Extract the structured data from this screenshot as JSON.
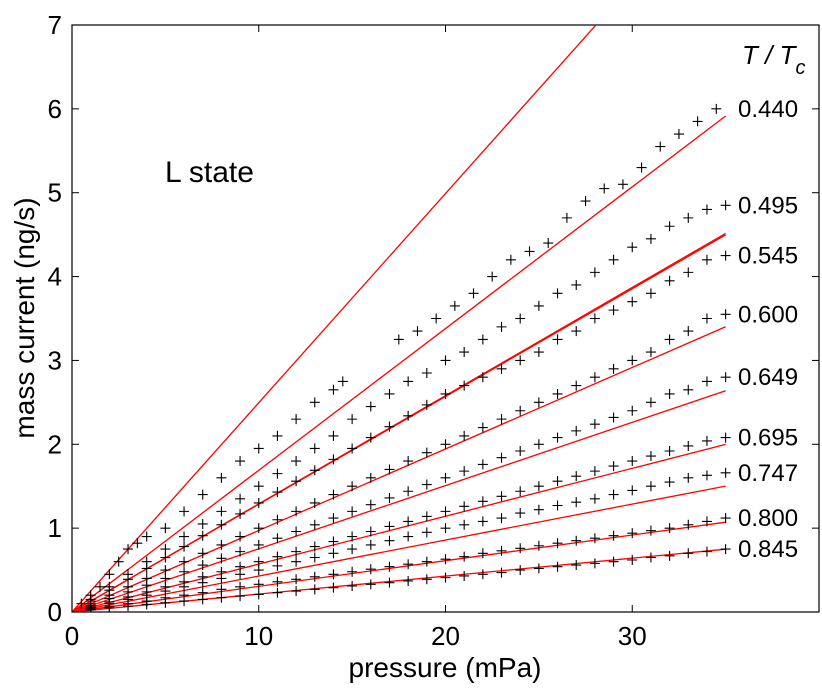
{
  "chart_data": {
    "type": "scatter",
    "xlabel": "pressure (mPa)",
    "ylabel": "mass current (ng/s)",
    "xlim": [
      0,
      40
    ],
    "ylim": [
      0,
      7
    ],
    "xticks": [
      0,
      10,
      20,
      30
    ],
    "yticks": [
      0,
      1,
      2,
      3,
      4,
      5,
      6,
      7
    ],
    "annotation": "L state",
    "legend_title": {
      "main": "T / T",
      "sub": "c"
    },
    "fit_color": "#ff0000",
    "marker_color": "#000000",
    "series": [
      {
        "name": "0.440",
        "fit_slope": 0.169,
        "fit_x_end": 35,
        "points": [
          [
            0.5,
            0.1
          ],
          [
            1,
            0.2
          ],
          [
            1.5,
            0.3
          ],
          [
            2,
            0.45
          ],
          [
            2.5,
            0.6
          ],
          [
            3,
            0.75
          ],
          [
            3.5,
            0.82
          ],
          [
            4,
            0.9
          ],
          [
            5,
            1.0
          ],
          [
            6,
            1.2
          ],
          [
            7,
            1.4
          ],
          [
            8,
            1.6
          ],
          [
            9,
            1.8
          ],
          [
            10,
            1.95
          ],
          [
            11,
            2.1
          ],
          [
            12,
            2.3
          ],
          [
            13,
            2.5
          ],
          [
            14,
            2.65
          ],
          [
            14.5,
            2.75
          ],
          [
            17.5,
            3.25
          ],
          [
            18.5,
            3.35
          ],
          [
            19.5,
            3.5
          ],
          [
            20.5,
            3.65
          ],
          [
            21.5,
            3.8
          ],
          [
            22.5,
            4.0
          ],
          [
            23.5,
            4.2
          ],
          [
            24.5,
            4.3
          ],
          [
            25.5,
            4.4
          ],
          [
            26.5,
            4.7
          ],
          [
            27.5,
            4.9
          ],
          [
            28.5,
            5.05
          ],
          [
            29.5,
            5.1
          ],
          [
            30.5,
            5.3
          ],
          [
            31.5,
            5.55
          ],
          [
            32.5,
            5.7
          ],
          [
            33.5,
            5.85
          ],
          [
            34.5,
            6.0
          ]
        ]
      },
      {
        "name": "0.495",
        "fit_slope": 0.129,
        "fit_x_end": 35,
        "points": [
          [
            1,
            0.15
          ],
          [
            2,
            0.3
          ],
          [
            3,
            0.45
          ],
          [
            4,
            0.6
          ],
          [
            5,
            0.75
          ],
          [
            6,
            0.9
          ],
          [
            7,
            1.05
          ],
          [
            8,
            1.2
          ],
          [
            9,
            1.35
          ],
          [
            10,
            1.5
          ],
          [
            11,
            1.65
          ],
          [
            12,
            1.8
          ],
          [
            13,
            1.95
          ],
          [
            14,
            2.1
          ],
          [
            15,
            2.3
          ],
          [
            16,
            2.45
          ],
          [
            17,
            2.6
          ],
          [
            18,
            2.75
          ],
          [
            19,
            2.85
          ],
          [
            20,
            3.0
          ],
          [
            21,
            3.1
          ],
          [
            22,
            3.25
          ],
          [
            23,
            3.4
          ],
          [
            24,
            3.5
          ],
          [
            25,
            3.65
          ],
          [
            26,
            3.8
          ],
          [
            27,
            3.9
          ],
          [
            28,
            4.05
          ],
          [
            29,
            4.2
          ],
          [
            30,
            4.35
          ],
          [
            31,
            4.45
          ],
          [
            32,
            4.6
          ],
          [
            33,
            4.7
          ],
          [
            34,
            4.8
          ],
          [
            35,
            4.85
          ]
        ]
      },
      {
        "name": "0.545",
        "fit_slope": 0.1285,
        "fit_x_end": 35,
        "points": [
          [
            1,
            0.13
          ],
          [
            2,
            0.26
          ],
          [
            3,
            0.39
          ],
          [
            4,
            0.52
          ],
          [
            5,
            0.65
          ],
          [
            6,
            0.78
          ],
          [
            7,
            0.91
          ],
          [
            8,
            1.04
          ],
          [
            9,
            1.17
          ],
          [
            10,
            1.3
          ],
          [
            11,
            1.43
          ],
          [
            12,
            1.56
          ],
          [
            13,
            1.69
          ],
          [
            14,
            1.82
          ],
          [
            15,
            1.95
          ],
          [
            16,
            2.08
          ],
          [
            17,
            2.21
          ],
          [
            18,
            2.34
          ],
          [
            19,
            2.47
          ],
          [
            20,
            2.6
          ],
          [
            21,
            2.7
          ],
          [
            22,
            2.8
          ],
          [
            23,
            2.9
          ],
          [
            24,
            3.0
          ],
          [
            25,
            3.1
          ],
          [
            26,
            3.25
          ],
          [
            27,
            3.35
          ],
          [
            28,
            3.5
          ],
          [
            29,
            3.6
          ],
          [
            30,
            3.7
          ],
          [
            31,
            3.8
          ],
          [
            32,
            3.95
          ],
          [
            33,
            4.05
          ],
          [
            34,
            4.2
          ],
          [
            35,
            4.25
          ]
        ]
      },
      {
        "name": "0.600",
        "fit_slope": 0.0972,
        "fit_x_end": 35,
        "points": [
          [
            1,
            0.1
          ],
          [
            2,
            0.2
          ],
          [
            3,
            0.3
          ],
          [
            4,
            0.4
          ],
          [
            5,
            0.5
          ],
          [
            6,
            0.6
          ],
          [
            7,
            0.7
          ],
          [
            8,
            0.8
          ],
          [
            9,
            0.9
          ],
          [
            10,
            1.0
          ],
          [
            11,
            1.1
          ],
          [
            12,
            1.2
          ],
          [
            13,
            1.3
          ],
          [
            14,
            1.4
          ],
          [
            15,
            1.5
          ],
          [
            16,
            1.6
          ],
          [
            17,
            1.7
          ],
          [
            18,
            1.8
          ],
          [
            19,
            1.9
          ],
          [
            20,
            2.0
          ],
          [
            21,
            2.1
          ],
          [
            22,
            2.2
          ],
          [
            23,
            2.3
          ],
          [
            24,
            2.4
          ],
          [
            25,
            2.5
          ],
          [
            26,
            2.6
          ],
          [
            27,
            2.7
          ],
          [
            28,
            2.8
          ],
          [
            29,
            2.9
          ],
          [
            30,
            3.0
          ],
          [
            31,
            3.1
          ],
          [
            32,
            3.25
          ],
          [
            33,
            3.35
          ],
          [
            34,
            3.5
          ],
          [
            35,
            3.55
          ]
        ]
      },
      {
        "name": "0.649",
        "fit_slope": 0.0754,
        "fit_x_end": 35,
        "points": [
          [
            1,
            0.08
          ],
          [
            2,
            0.16
          ],
          [
            3,
            0.24
          ],
          [
            4,
            0.32
          ],
          [
            5,
            0.4
          ],
          [
            6,
            0.48
          ],
          [
            7,
            0.56
          ],
          [
            8,
            0.64
          ],
          [
            9,
            0.72
          ],
          [
            10,
            0.8
          ],
          [
            11,
            0.88
          ],
          [
            12,
            0.96
          ],
          [
            13,
            1.04
          ],
          [
            14,
            1.12
          ],
          [
            15,
            1.2
          ],
          [
            16,
            1.28
          ],
          [
            17,
            1.36
          ],
          [
            18,
            1.44
          ],
          [
            19,
            1.52
          ],
          [
            20,
            1.6
          ],
          [
            21,
            1.68
          ],
          [
            22,
            1.76
          ],
          [
            23,
            1.84
          ],
          [
            24,
            1.92
          ],
          [
            25,
            2.0
          ],
          [
            26,
            2.08
          ],
          [
            27,
            2.16
          ],
          [
            28,
            2.24
          ],
          [
            29,
            2.32
          ],
          [
            30,
            2.4
          ],
          [
            31,
            2.5
          ],
          [
            32,
            2.6
          ],
          [
            33,
            2.65
          ],
          [
            34,
            2.75
          ],
          [
            35,
            2.8
          ]
        ]
      },
      {
        "name": "0.695",
        "fit_slope": 0.0571,
        "fit_x_end": 35,
        "points": [
          [
            1,
            0.06
          ],
          [
            2,
            0.12
          ],
          [
            3,
            0.18
          ],
          [
            4,
            0.24
          ],
          [
            5,
            0.3
          ],
          [
            6,
            0.36
          ],
          [
            7,
            0.42
          ],
          [
            8,
            0.48
          ],
          [
            9,
            0.54
          ],
          [
            10,
            0.6
          ],
          [
            11,
            0.66
          ],
          [
            12,
            0.72
          ],
          [
            13,
            0.78
          ],
          [
            14,
            0.84
          ],
          [
            15,
            0.9
          ],
          [
            16,
            0.96
          ],
          [
            17,
            1.02
          ],
          [
            18,
            1.08
          ],
          [
            19,
            1.14
          ],
          [
            20,
            1.2
          ],
          [
            21,
            1.26
          ],
          [
            22,
            1.32
          ],
          [
            23,
            1.38
          ],
          [
            24,
            1.44
          ],
          [
            25,
            1.5
          ],
          [
            26,
            1.56
          ],
          [
            27,
            1.62
          ],
          [
            28,
            1.68
          ],
          [
            29,
            1.74
          ],
          [
            30,
            1.8
          ],
          [
            31,
            1.86
          ],
          [
            32,
            1.92
          ],
          [
            33,
            1.98
          ],
          [
            34,
            2.04
          ],
          [
            35,
            2.08
          ]
        ]
      },
      {
        "name": "0.747",
        "fit_slope": 0.0429,
        "fit_x_end": 35,
        "points": [
          [
            1,
            0.05
          ],
          [
            2,
            0.1
          ],
          [
            3,
            0.15
          ],
          [
            4,
            0.2
          ],
          [
            5,
            0.25
          ],
          [
            6,
            0.3
          ],
          [
            7,
            0.35
          ],
          [
            8,
            0.4
          ],
          [
            9,
            0.45
          ],
          [
            10,
            0.5
          ],
          [
            11,
            0.55
          ],
          [
            12,
            0.6
          ],
          [
            13,
            0.65
          ],
          [
            14,
            0.7
          ],
          [
            15,
            0.75
          ],
          [
            16,
            0.8
          ],
          [
            17,
            0.85
          ],
          [
            18,
            0.9
          ],
          [
            19,
            0.95
          ],
          [
            20,
            1.0
          ],
          [
            21,
            1.04
          ],
          [
            22,
            1.08
          ],
          [
            23,
            1.12
          ],
          [
            24,
            1.18
          ],
          [
            25,
            1.22
          ],
          [
            26,
            1.27
          ],
          [
            27,
            1.31
          ],
          [
            28,
            1.35
          ],
          [
            29,
            1.4
          ],
          [
            30,
            1.45
          ],
          [
            31,
            1.5
          ],
          [
            32,
            1.55
          ],
          [
            33,
            1.6
          ],
          [
            34,
            1.63
          ],
          [
            35,
            1.66
          ]
        ]
      },
      {
        "name": "0.800",
        "fit_slope": 0.0306,
        "fit_x_end": 35,
        "points": [
          [
            1,
            0.035
          ],
          [
            2,
            0.07
          ],
          [
            3,
            0.1
          ],
          [
            4,
            0.13
          ],
          [
            5,
            0.17
          ],
          [
            6,
            0.2
          ],
          [
            7,
            0.23
          ],
          [
            8,
            0.27
          ],
          [
            9,
            0.3
          ],
          [
            10,
            0.33
          ],
          [
            11,
            0.36
          ],
          [
            12,
            0.39
          ],
          [
            13,
            0.42
          ],
          [
            14,
            0.45
          ],
          [
            15,
            0.48
          ],
          [
            16,
            0.51
          ],
          [
            17,
            0.54
          ],
          [
            18,
            0.57
          ],
          [
            19,
            0.6
          ],
          [
            20,
            0.63
          ],
          [
            21,
            0.66
          ],
          [
            22,
            0.7
          ],
          [
            23,
            0.73
          ],
          [
            24,
            0.76
          ],
          [
            25,
            0.79
          ],
          [
            26,
            0.82
          ],
          [
            27,
            0.85
          ],
          [
            28,
            0.88
          ],
          [
            29,
            0.91
          ],
          [
            30,
            0.94
          ],
          [
            31,
            0.97
          ],
          [
            32,
            1.0
          ],
          [
            33,
            1.04
          ],
          [
            34,
            1.08
          ],
          [
            35,
            1.12
          ]
        ]
      },
      {
        "name": "0.845",
        "fit_slope": 0.0214,
        "fit_x_end": 35,
        "points": [
          [
            1,
            0.025
          ],
          [
            2,
            0.05
          ],
          [
            3,
            0.07
          ],
          [
            4,
            0.09
          ],
          [
            5,
            0.11
          ],
          [
            6,
            0.13
          ],
          [
            7,
            0.15
          ],
          [
            8,
            0.17
          ],
          [
            9,
            0.19
          ],
          [
            10,
            0.21
          ],
          [
            11,
            0.23
          ],
          [
            12,
            0.25
          ],
          [
            13,
            0.27
          ],
          [
            14,
            0.29
          ],
          [
            15,
            0.31
          ],
          [
            16,
            0.33
          ],
          [
            17,
            0.35
          ],
          [
            18,
            0.37
          ],
          [
            19,
            0.39
          ],
          [
            20,
            0.41
          ],
          [
            21,
            0.43
          ],
          [
            22,
            0.45
          ],
          [
            23,
            0.47
          ],
          [
            24,
            0.5
          ],
          [
            25,
            0.52
          ],
          [
            26,
            0.54
          ],
          [
            27,
            0.56
          ],
          [
            28,
            0.58
          ],
          [
            29,
            0.6
          ],
          [
            30,
            0.62
          ],
          [
            31,
            0.65
          ],
          [
            32,
            0.67
          ],
          [
            33,
            0.7
          ],
          [
            34,
            0.72
          ],
          [
            35,
            0.75
          ]
        ]
      }
    ],
    "extra_fit_line": {
      "name": "steep-fit",
      "slope": 0.2495,
      "x_end": 40
    }
  }
}
